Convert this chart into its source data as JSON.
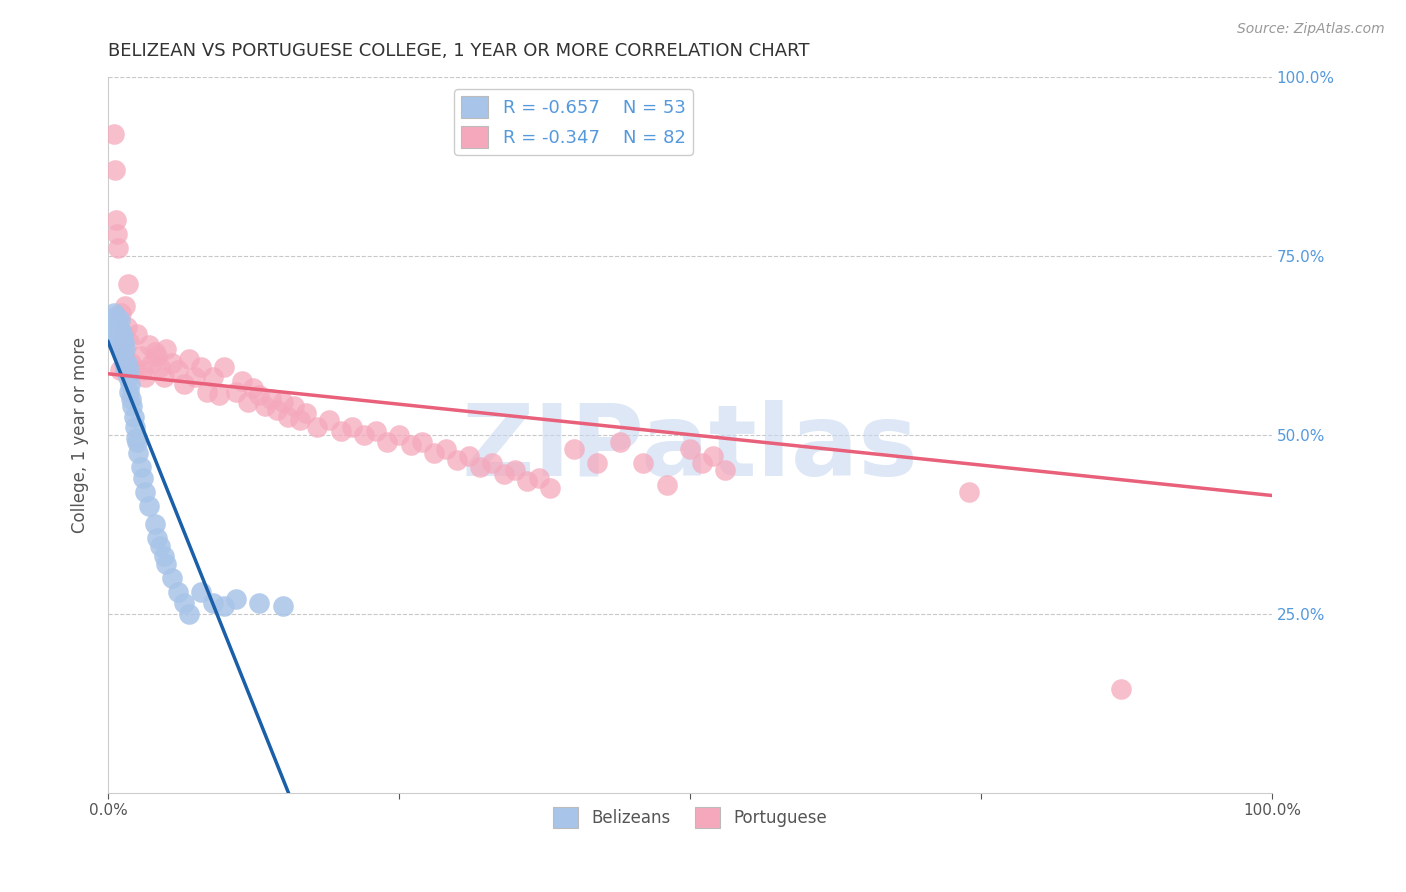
{
  "title": "BELIZEAN VS PORTUGUESE COLLEGE, 1 YEAR OR MORE CORRELATION CHART",
  "source": "Source: ZipAtlas.com",
  "ylabel": "College, 1 year or more",
  "watermark_text": "ZIPatlas",
  "xlim": [
    0,
    1.0
  ],
  "ylim": [
    0,
    1.0
  ],
  "belizean_R": "-0.657",
  "belizean_N": "53",
  "portuguese_R": "-0.347",
  "portuguese_N": "82",
  "belizean_color": "#a8c4e8",
  "portuguese_color": "#f5a8bc",
  "belizean_line_color": "#1a5fa8",
  "portuguese_line_color": "#e8607a",
  "bg_color": "#ffffff",
  "grid_color": "#c8c8c8",
  "right_tick_color": "#5599dd",
  "watermark_color": "#c8d8f0",
  "title_color": "#333333",
  "axis_label_color": "#555555",
  "blue_scatter_x": [
    0.005,
    0.005,
    0.005,
    0.007,
    0.007,
    0.007,
    0.008,
    0.009,
    0.009,
    0.01,
    0.01,
    0.01,
    0.011,
    0.011,
    0.012,
    0.012,
    0.013,
    0.013,
    0.014,
    0.014,
    0.015,
    0.015,
    0.016,
    0.017,
    0.018,
    0.018,
    0.019,
    0.02,
    0.021,
    0.022,
    0.023,
    0.024,
    0.025,
    0.026,
    0.028,
    0.03,
    0.032,
    0.035,
    0.04,
    0.042,
    0.045,
    0.048,
    0.05,
    0.055,
    0.06,
    0.065,
    0.07,
    0.08,
    0.09,
    0.1,
    0.11,
    0.13,
    0.15
  ],
  "blue_scatter_y": [
    0.67,
    0.66,
    0.65,
    0.665,
    0.655,
    0.64,
    0.66,
    0.65,
    0.635,
    0.66,
    0.645,
    0.63,
    0.645,
    0.625,
    0.64,
    0.615,
    0.635,
    0.61,
    0.63,
    0.6,
    0.62,
    0.59,
    0.6,
    0.58,
    0.59,
    0.56,
    0.57,
    0.55,
    0.54,
    0.525,
    0.51,
    0.495,
    0.49,
    0.475,
    0.455,
    0.44,
    0.42,
    0.4,
    0.375,
    0.355,
    0.345,
    0.33,
    0.32,
    0.3,
    0.28,
    0.265,
    0.25,
    0.28,
    0.265,
    0.26,
    0.27,
    0.265,
    0.26
  ],
  "pink_scatter_x": [
    0.005,
    0.006,
    0.007,
    0.008,
    0.009,
    0.01,
    0.011,
    0.012,
    0.013,
    0.014,
    0.015,
    0.016,
    0.017,
    0.018,
    0.02,
    0.022,
    0.025,
    0.028,
    0.03,
    0.032,
    0.035,
    0.038,
    0.04,
    0.042,
    0.045,
    0.048,
    0.05,
    0.055,
    0.06,
    0.065,
    0.07,
    0.075,
    0.08,
    0.085,
    0.09,
    0.095,
    0.1,
    0.11,
    0.115,
    0.12,
    0.125,
    0.13,
    0.135,
    0.14,
    0.145,
    0.15,
    0.155,
    0.16,
    0.165,
    0.17,
    0.18,
    0.19,
    0.2,
    0.21,
    0.22,
    0.23,
    0.24,
    0.25,
    0.26,
    0.27,
    0.28,
    0.29,
    0.3,
    0.31,
    0.32,
    0.33,
    0.34,
    0.35,
    0.36,
    0.37,
    0.38,
    0.4,
    0.42,
    0.44,
    0.46,
    0.48,
    0.5,
    0.51,
    0.52,
    0.53,
    0.74,
    0.87
  ],
  "pink_scatter_y": [
    0.92,
    0.87,
    0.8,
    0.78,
    0.76,
    0.59,
    0.67,
    0.62,
    0.64,
    0.61,
    0.68,
    0.65,
    0.71,
    0.63,
    0.6,
    0.59,
    0.64,
    0.61,
    0.59,
    0.58,
    0.625,
    0.6,
    0.615,
    0.61,
    0.595,
    0.58,
    0.62,
    0.6,
    0.59,
    0.57,
    0.605,
    0.58,
    0.595,
    0.56,
    0.58,
    0.555,
    0.595,
    0.56,
    0.575,
    0.545,
    0.565,
    0.555,
    0.54,
    0.55,
    0.535,
    0.545,
    0.525,
    0.54,
    0.52,
    0.53,
    0.51,
    0.52,
    0.505,
    0.51,
    0.5,
    0.505,
    0.49,
    0.5,
    0.485,
    0.49,
    0.475,
    0.48,
    0.465,
    0.47,
    0.455,
    0.46,
    0.445,
    0.45,
    0.435,
    0.44,
    0.425,
    0.48,
    0.46,
    0.49,
    0.46,
    0.43,
    0.48,
    0.46,
    0.47,
    0.45,
    0.42,
    0.145
  ],
  "blue_line_x0": 0.0,
  "blue_line_y0": 0.63,
  "blue_line_x1": 0.155,
  "blue_line_y1": 0.0,
  "pink_line_x0": 0.0,
  "pink_line_y0": 0.585,
  "pink_line_x1": 1.0,
  "pink_line_y1": 0.415
}
